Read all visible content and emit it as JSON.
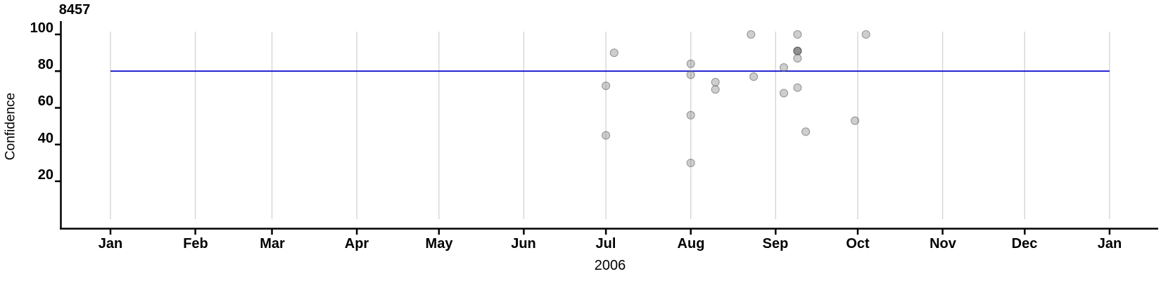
{
  "chart_data": {
    "type": "scatter",
    "title": "8457",
    "xlabel": "2006",
    "ylabel": "Confidence",
    "x_axis": {
      "tick_labels": [
        "Jan",
        "Feb",
        "Mar",
        "Apr",
        "May",
        "Jun",
        "Jul",
        "Aug",
        "Sep",
        "Oct",
        "Nov",
        "Dec",
        "Jan"
      ],
      "tick_day_offsets": [
        0,
        31,
        59,
        90,
        120,
        151,
        181,
        212,
        243,
        273,
        304,
        334,
        365
      ],
      "range_days": [
        0,
        365
      ],
      "grid": true
    },
    "y_axis": {
      "ticks": [
        20,
        40,
        60,
        80,
        100
      ],
      "tick_labels": [
        "20",
        "40",
        "60",
        "80",
        "100"
      ],
      "ylim": [
        -6,
        107
      ],
      "grid": false
    },
    "reference_line": {
      "value": 80,
      "color": "#0000cd"
    },
    "points": [
      {
        "date": "2006-06-30",
        "day": 181,
        "value": 72
      },
      {
        "date": "2006-06-30",
        "day": 181,
        "value": 45
      },
      {
        "date": "2006-07-03",
        "day": 184,
        "value": 90
      },
      {
        "date": "2006-08-01",
        "day": 212,
        "value": 84
      },
      {
        "date": "2006-08-01",
        "day": 212,
        "value": 78
      },
      {
        "date": "2006-08-01",
        "day": 212,
        "value": 56
      },
      {
        "date": "2006-08-01",
        "day": 212,
        "value": 30
      },
      {
        "date": "2006-08-09",
        "day": 221,
        "value": 74
      },
      {
        "date": "2006-08-09",
        "day": 221,
        "value": 70
      },
      {
        "date": "2006-08-22",
        "day": 234,
        "value": 100
      },
      {
        "date": "2006-08-23",
        "day": 235,
        "value": 77
      },
      {
        "date": "2006-09-03",
        "day": 246,
        "value": 82
      },
      {
        "date": "2006-09-03",
        "day": 246,
        "value": 68
      },
      {
        "date": "2006-09-08",
        "day": 251,
        "value": 100
      },
      {
        "date": "2006-09-08",
        "day": 251,
        "value": 91
      },
      {
        "date": "2006-09-08",
        "day": 251,
        "value": 91
      },
      {
        "date": "2006-09-08",
        "day": 251,
        "value": 91
      },
      {
        "date": "2006-09-08",
        "day": 251,
        "value": 87
      },
      {
        "date": "2006-09-08",
        "day": 251,
        "value": 71
      },
      {
        "date": "2006-09-11",
        "day": 254,
        "value": 47
      },
      {
        "date": "2006-09-29",
        "day": 272,
        "value": 53
      },
      {
        "date": "2006-10-03",
        "day": 276,
        "value": 100
      }
    ],
    "colors": {
      "point_fill": "rgba(80,80,80,0.28)",
      "point_stroke": "rgba(90,90,90,0.55)",
      "gridline": "#d6d6d6",
      "axis": "#000000",
      "reference_line": "#0000cd",
      "text": "#000000"
    },
    "legend": null
  }
}
